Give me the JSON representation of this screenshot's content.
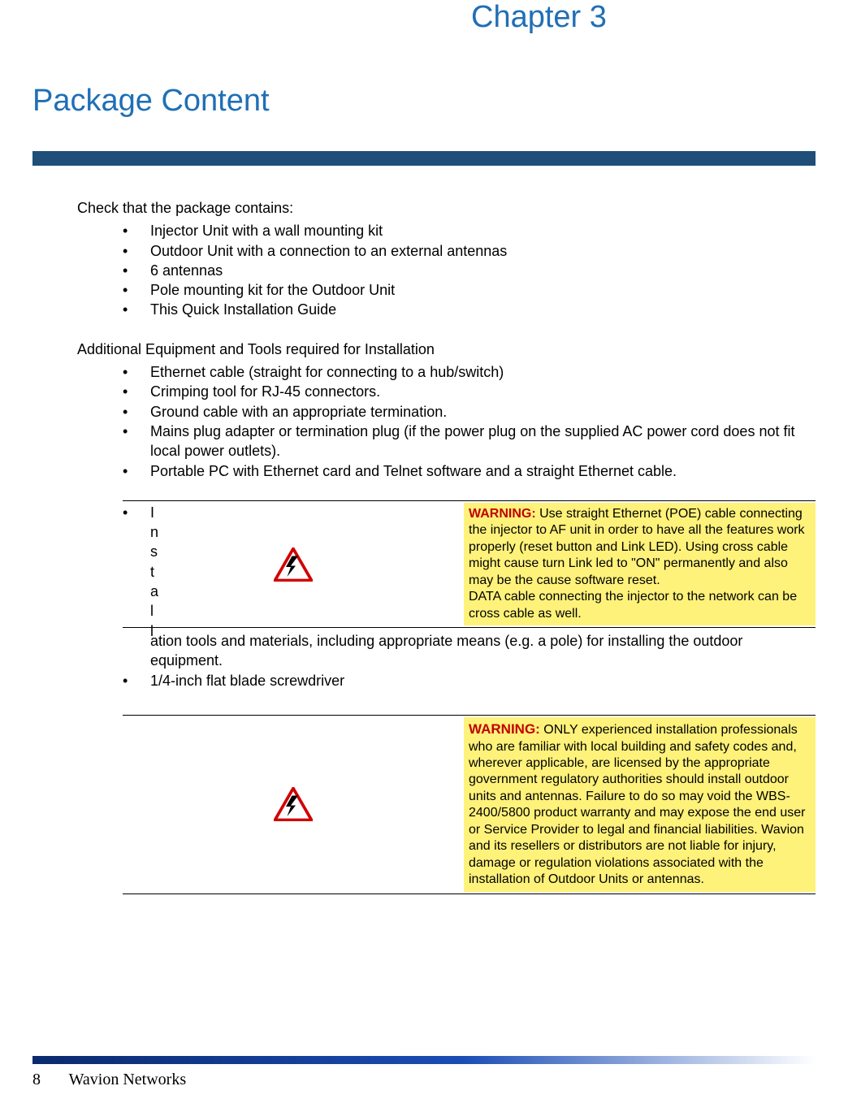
{
  "chapter": "Chapter 3",
  "section_title": "Package Content",
  "intro1": "Check that the package contains:",
  "list1": [
    "Injector Unit with a wall mounting kit",
    "Outdoor Unit with a connection to an external antennas",
    "6 antennas",
    "Pole mounting kit for the Outdoor Unit",
    "This Quick Installation Guide"
  ],
  "intro2": "Additional Equipment and Tools required for Installation",
  "list2": [
    "Ethernet cable (straight for connecting to a hub/switch)",
    "Crimping tool for RJ-45 connectors.",
    "Ground cable with an appropriate termination.",
    "Mains plug adapter or termination plug (if the power plug on the supplied AC power cord does not fit local power outlets).",
    "Portable PC with Ethernet card and Telnet software and a straight Ethernet cable."
  ],
  "vertical_word": "Install",
  "warning1_label": "WARNING:",
  "warning1_body": "Use straight Ethernet (POE) cable connecting the injector to AF unit in order to have all the features work properly (reset button and Link LED). Using cross cable might cause turn Link led to \"ON\" permanently and also may be the cause software reset.\nDATA cable connecting the injector to the network can be cross cable as well.",
  "continuation": "ation tools and materials, including appropriate means (e.g. a pole) for installing the outdoor equipment.",
  "list3_item": "1/4-inch flat blade screwdriver",
  "warning2_label": "WARNING:",
  "warning2_body": "ONLY experienced installation professionals who are familiar with local building and safety codes and, wherever applicable, are licensed by the appropriate government regulatory authorities should install outdoor units and antennas. Failure to do so may void the WBS-2400/5800 product warranty and may expose the end user or Service Provider to legal and financial liabilities. Wavion and its resellers or distributors are not liable for injury, damage or regulation violations associated with the installation of Outdoor Units or antennas.",
  "page_number": "8",
  "footer_title": "Wavion Networks",
  "colors": {
    "heading_blue": "#1f6fb5",
    "bar_blue": "#1f4e79",
    "warning_bg": "#fff27a",
    "warning_label": "#c00000",
    "triangle_stroke": "#d10000",
    "bolt_fill": "#000000"
  }
}
